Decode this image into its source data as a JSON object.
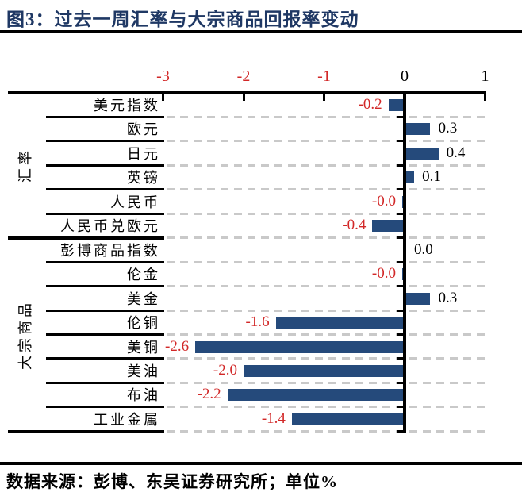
{
  "title": "图3：过去一周汇率与大宗商品回报率变动",
  "source_note": "数据来源：彭博、东吴证券研究所；单位%",
  "colors": {
    "title_text": "#1f3864",
    "bar_fill": "#254a7b",
    "negative_label": "#d22828",
    "positive_label": "#000000",
    "axis": "#000000",
    "grid_dash": "#c9c9c9",
    "background": "#ffffff"
  },
  "chart_data": {
    "type": "bar",
    "orientation": "horizontal",
    "unit": "%",
    "xlim": [
      -3,
      1
    ],
    "x_ticks": [
      "-3",
      "-2",
      "-1",
      "0",
      "1"
    ],
    "grid": "dashed-row-separators",
    "groups": [
      {
        "label": "汇率",
        "items": [
          "美元指数",
          "欧元",
          "日元",
          "英镑",
          "人民币",
          "人民币兑欧元"
        ]
      },
      {
        "label": "大宗商品",
        "items": [
          "彭博商品指数",
          "伦金",
          "美金",
          "伦铜",
          "美铜",
          "美油",
          "布油",
          "工业金属"
        ]
      }
    ],
    "categories": [
      "美元指数",
      "欧元",
      "日元",
      "英镑",
      "人民币",
      "人民币兑欧元",
      "彭博商品指数",
      "伦金",
      "美金",
      "伦铜",
      "美铜",
      "美油",
      "布油",
      "工业金属"
    ],
    "values": [
      -0.2,
      0.3,
      0.4,
      0.1,
      -0.0,
      -0.4,
      0.0,
      -0.0,
      0.3,
      -1.6,
      -2.6,
      -2.0,
      -2.2,
      -1.4
    ],
    "value_labels": [
      "-0.2",
      "0.3",
      "0.4",
      "0.1",
      "-0.0",
      "-0.4",
      "0.0",
      "-0.0",
      "0.3",
      "-1.6",
      "-2.6",
      "-2.0",
      "-2.2",
      "-1.4"
    ]
  }
}
